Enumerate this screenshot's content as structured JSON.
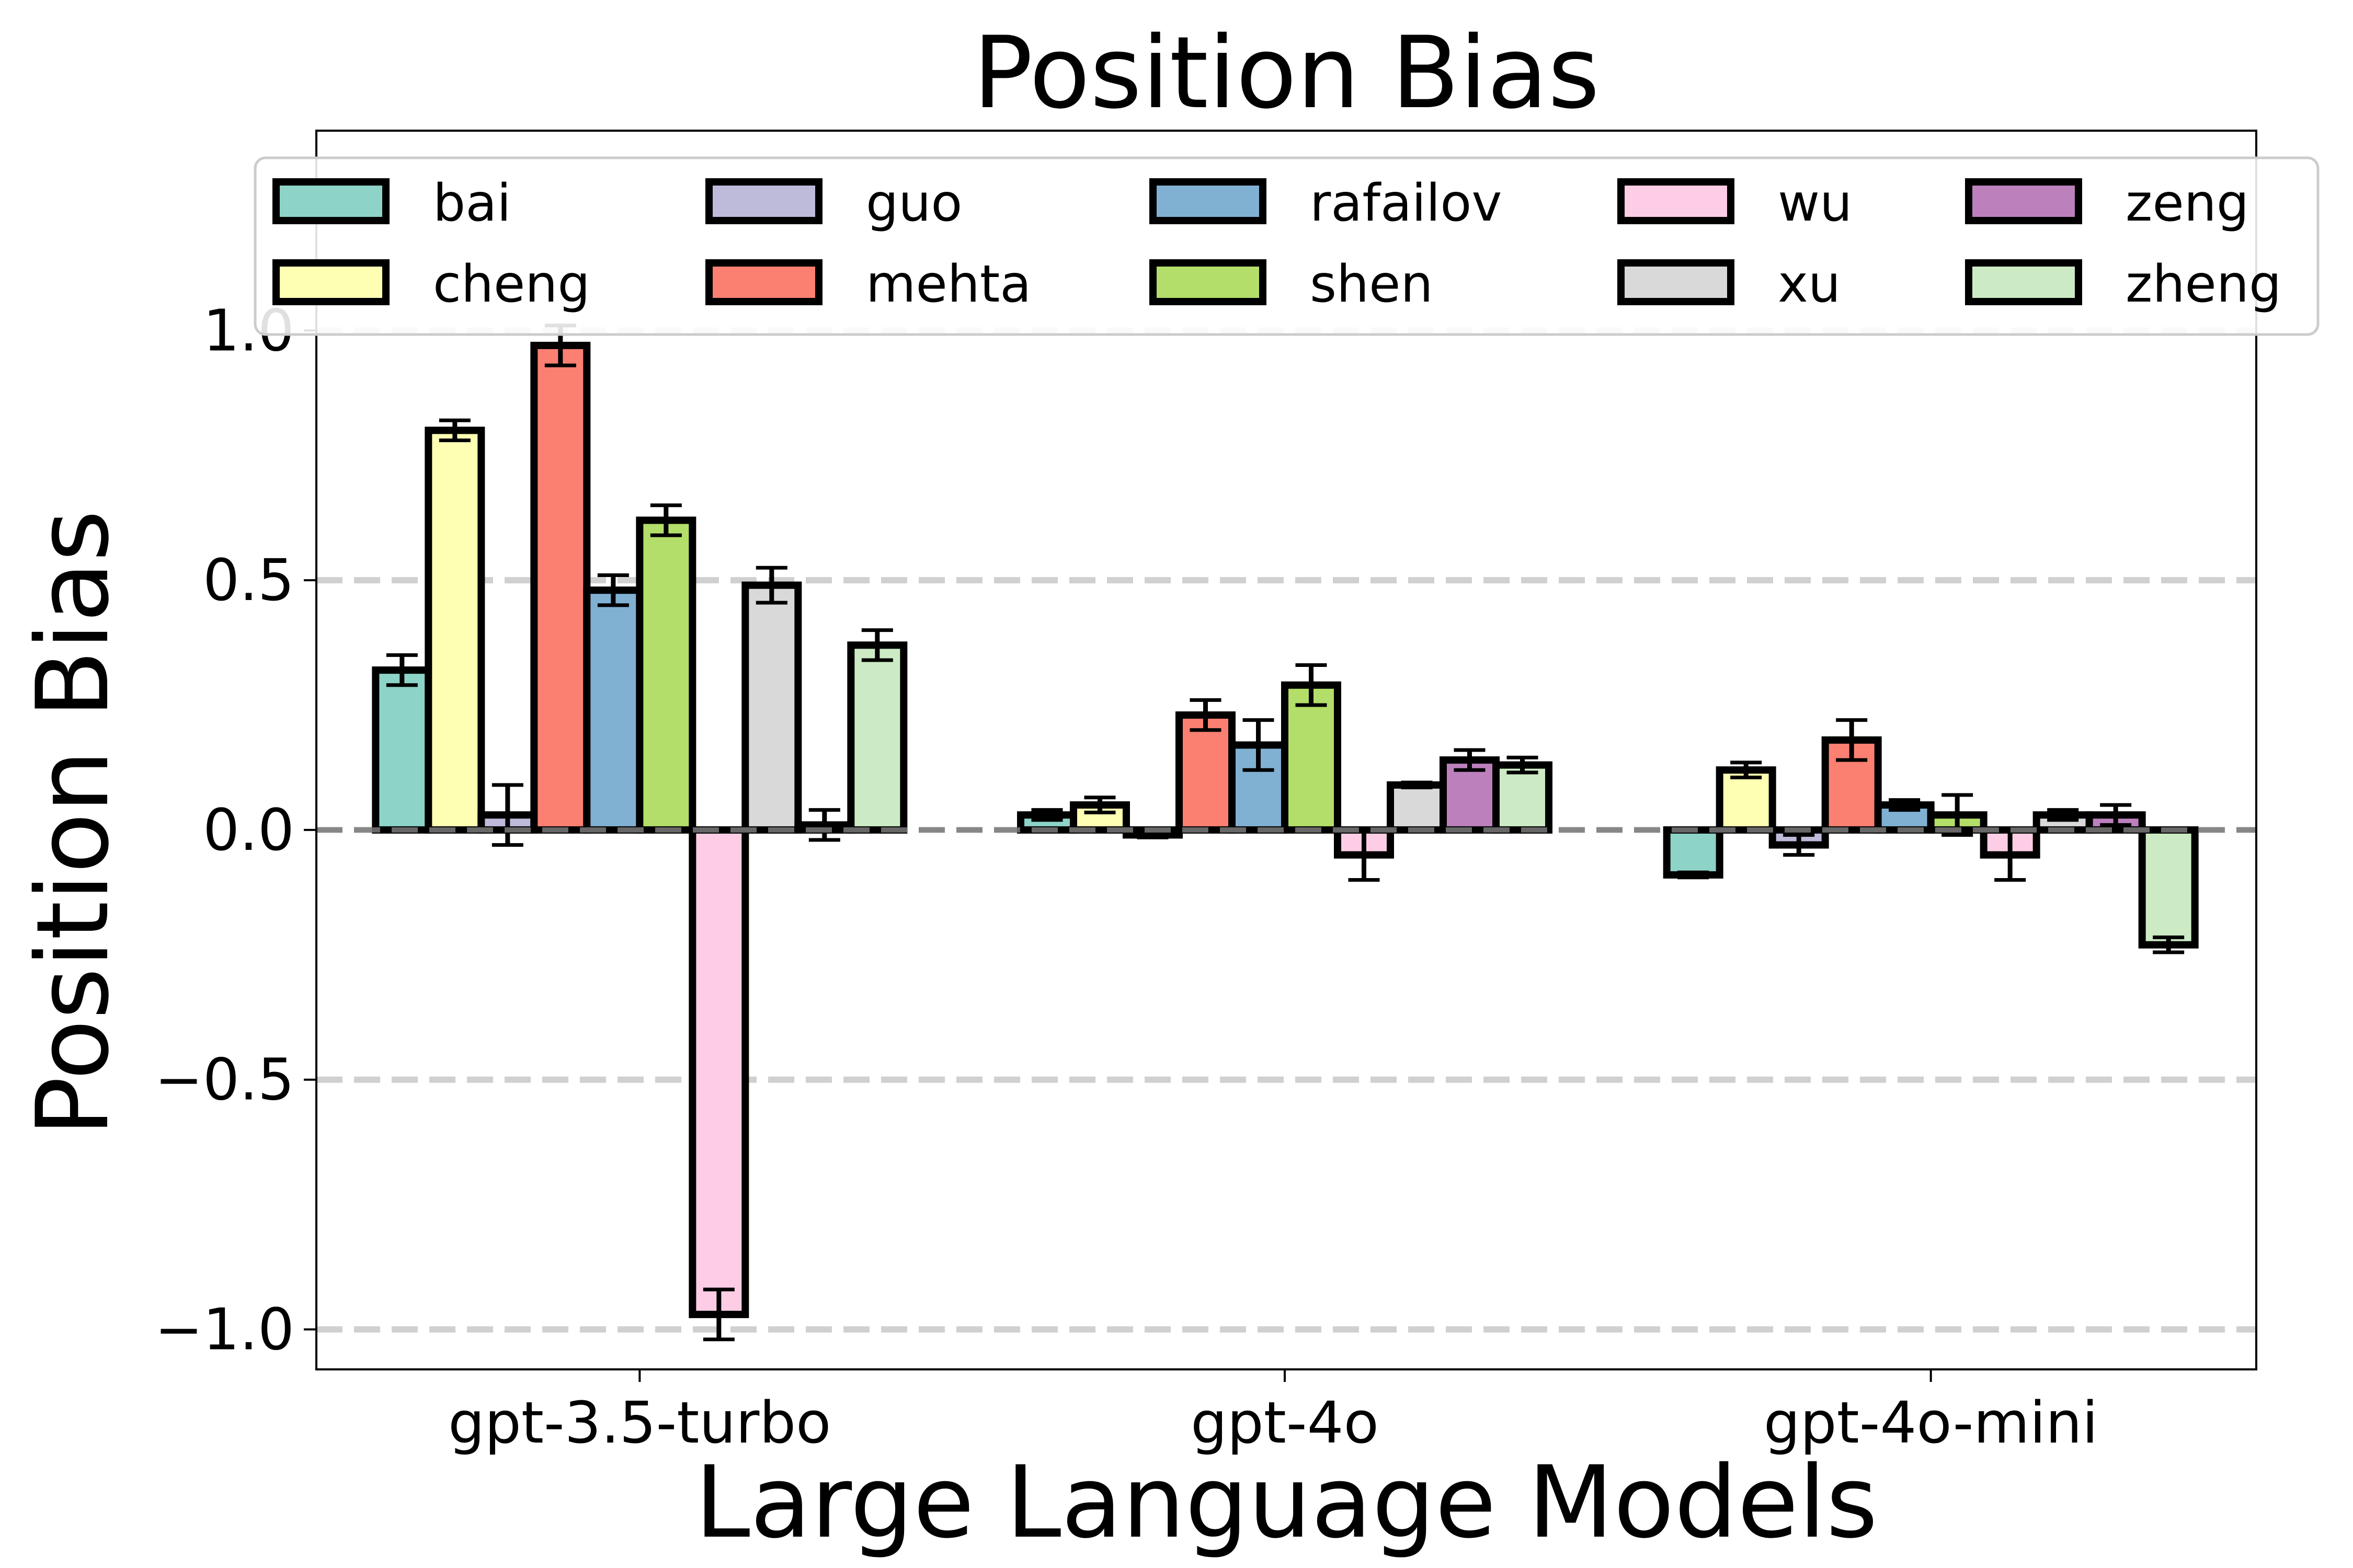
{
  "chart_data": {
    "type": "bar",
    "title": "Position Bias",
    "xlabel": "Large Language Models",
    "ylabel": "Position Bias",
    "categories": [
      "gpt-3.5-turbo",
      "gpt-4o",
      "gpt-4o-mini"
    ],
    "ylim": [
      -1.08,
      1.4
    ],
    "yticks": [
      1.0,
      0.5,
      0.0,
      -0.5,
      -1.0
    ],
    "ytick_labels": [
      "1.0",
      "0.5",
      "0.0",
      "−0.5",
      "−1.0"
    ],
    "grid": "horizontal dashed",
    "legend_position": "top",
    "series": [
      {
        "name": "bai",
        "color": "#8dd3c7",
        "values": [
          0.32,
          0.03,
          -0.09
        ],
        "errors": [
          0.03,
          0.01,
          0.005
        ]
      },
      {
        "name": "cheng",
        "color": "#ffffb3",
        "values": [
          0.8,
          0.05,
          0.12
        ],
        "errors": [
          0.02,
          0.015,
          0.015
        ]
      },
      {
        "name": "guo",
        "color": "#bebada",
        "values": [
          0.03,
          -0.01,
          -0.03
        ],
        "errors": [
          0.06,
          0.005,
          0.02
        ]
      },
      {
        "name": "mehta",
        "color": "#fb8072",
        "values": [
          0.97,
          0.23,
          0.18
        ],
        "errors": [
          0.04,
          0.03,
          0.04
        ]
      },
      {
        "name": "rafailov",
        "color": "#80b1d3",
        "values": [
          0.48,
          0.17,
          0.05
        ],
        "errors": [
          0.03,
          0.05,
          0.01
        ]
      },
      {
        "name": "shen",
        "color": "#b3de69",
        "values": [
          0.62,
          0.29,
          0.03
        ],
        "errors": [
          0.03,
          0.04,
          0.04
        ]
      },
      {
        "name": "wu",
        "color": "#fccde5",
        "values": [
          -0.97,
          -0.05,
          -0.05
        ],
        "errors": [
          0.05,
          0.05,
          0.05
        ]
      },
      {
        "name": "xu",
        "color": "#d9d9d9",
        "values": [
          0.49,
          0.09,
          0.03
        ],
        "errors": [
          0.035,
          0.005,
          0.01
        ]
      },
      {
        "name": "zeng",
        "color": "#bc80bd",
        "values": [
          0.01,
          0.14,
          0.03
        ],
        "errors": [
          0.03,
          0.02,
          0.02
        ]
      },
      {
        "name": "zheng",
        "color": "#ccebc5",
        "values": [
          0.37,
          0.13,
          -0.23
        ],
        "errors": [
          0.03,
          0.015,
          0.015
        ]
      }
    ]
  }
}
